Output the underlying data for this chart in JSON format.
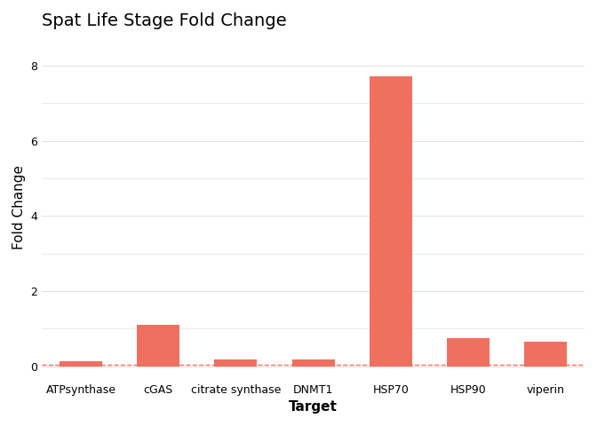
{
  "categories": [
    "ATPsynthase",
    "cGAS",
    "citrate synthase",
    "DNMT1",
    "HSP70",
    "HSP90",
    "viperin"
  ],
  "values": [
    0.15,
    1.1,
    0.18,
    0.18,
    7.72,
    0.75,
    0.65
  ],
  "bar_color": "#F07060",
  "dashed_line_color": "#F07060",
  "dashed_line_y": 0.04,
  "title": "Spat Life Stage Fold Change",
  "xlabel": "Target",
  "ylabel": "Fold Change",
  "ylim": [
    -0.35,
    8.8
  ],
  "yticks": [
    0,
    2,
    4,
    6,
    8
  ],
  "background_color": "#ffffff",
  "grid_color": "#e0e0e0",
  "title_fontsize": 14,
  "axis_label_fontsize": 11,
  "tick_fontsize": 9,
  "bar_width": 0.55
}
